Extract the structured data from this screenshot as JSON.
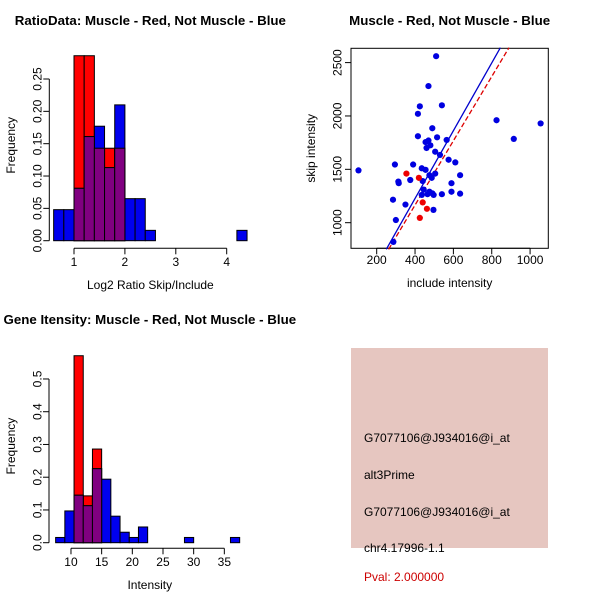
{
  "window": {
    "background": "#ffffff"
  },
  "colors": {
    "red_fill": "#ff0000",
    "blue_fill": "#0000ee",
    "overlap_fill": "#800080",
    "bar_border": "#000000",
    "scatter_blue": "#0000e0",
    "scatter_red": "#ee0000",
    "line_blue": "#0000cc",
    "line_red": "#dd0000",
    "axis": "#000000",
    "info_box_fill": "#e6c6c0",
    "pval_red": "#cc0000"
  },
  "chart_data": [
    {
      "type": "histogram-overlay",
      "title": "RatioData: Muscle - Red, Not Muscle - Blue",
      "xlabel": "Log2 Ratio Skip/Include",
      "ylabel": "Frequency",
      "xticks": [
        "1",
        "2",
        "3",
        "4"
      ],
      "xtick_values": [
        1,
        2,
        3,
        4
      ],
      "yticks": [
        "0.00",
        "0.05",
        "0.10",
        "0.15",
        "0.20",
        "0.25"
      ],
      "ytick_values": [
        0.0,
        0.05,
        0.1,
        0.15,
        0.2,
        0.25
      ],
      "xlim": [
        0.55,
        4.45
      ],
      "ylim": [
        0,
        0.295
      ],
      "bin_width": 0.2,
      "grid": false,
      "red_bins": [
        {
          "x": 1.0,
          "h": 0.286
        },
        {
          "x": 1.2,
          "h": 0.286
        },
        {
          "x": 1.4,
          "h": 0.143
        },
        {
          "x": 1.6,
          "h": 0.143
        },
        {
          "x": 1.8,
          "h": 0.143
        }
      ],
      "blue_bins": [
        {
          "x": 0.6,
          "h": 0.048
        },
        {
          "x": 0.8,
          "h": 0.048
        },
        {
          "x": 1.0,
          "h": 0.081
        },
        {
          "x": 1.2,
          "h": 0.161
        },
        {
          "x": 1.4,
          "h": 0.177
        },
        {
          "x": 1.6,
          "h": 0.113
        },
        {
          "x": 1.8,
          "h": 0.21
        },
        {
          "x": 2.0,
          "h": 0.065
        },
        {
          "x": 2.2,
          "h": 0.065
        },
        {
          "x": 2.4,
          "h": 0.016
        },
        {
          "x": 4.2,
          "h": 0.016
        }
      ]
    },
    {
      "type": "scatter",
      "title": "Muscle - Red, Not Muscle - Blue",
      "xlabel": "include intensity",
      "ylabel": "skip intensity",
      "xticks": [
        "200",
        "400",
        "600",
        "800",
        "1000"
      ],
      "xtick_values": [
        200,
        400,
        600,
        800,
        1000
      ],
      "yticks": [
        "1000",
        "1500",
        "2000",
        "2500"
      ],
      "ytick_values": [
        1000,
        1500,
        2000,
        2500
      ],
      "xlim": [
        66,
        1095
      ],
      "ylim": [
        760,
        2634
      ],
      "grid": false,
      "blue_points": [
        [
          105,
          1490
        ],
        [
          510,
          2560
        ],
        [
          470,
          2280
        ],
        [
          425,
          2090
        ],
        [
          540,
          2100
        ],
        [
          415,
          2020
        ],
        [
          490,
          1885
        ],
        [
          415,
          1810
        ],
        [
          515,
          1800
        ],
        [
          455,
          1755
        ],
        [
          470,
          1770
        ],
        [
          480,
          1725
        ],
        [
          460,
          1700
        ],
        [
          565,
          1775
        ],
        [
          505,
          1665
        ],
        [
          530,
          1635
        ],
        [
          575,
          1590
        ],
        [
          610,
          1565
        ],
        [
          295,
          1545
        ],
        [
          390,
          1545
        ],
        [
          435,
          1510
        ],
        [
          455,
          1495
        ],
        [
          475,
          1445
        ],
        [
          487,
          1420
        ],
        [
          505,
          1460
        ],
        [
          635,
          1445
        ],
        [
          590,
          1370
        ],
        [
          313,
          1385
        ],
        [
          375,
          1400
        ],
        [
          440,
          1390
        ],
        [
          315,
          1370
        ],
        [
          445,
          1310
        ],
        [
          475,
          1290
        ],
        [
          490,
          1275
        ],
        [
          540,
          1267
        ],
        [
          590,
          1290
        ],
        [
          635,
          1272
        ],
        [
          435,
          1260
        ],
        [
          465,
          1267
        ],
        [
          497,
          1260
        ],
        [
          285,
          1215
        ],
        [
          350,
          1170
        ],
        [
          496,
          1120
        ],
        [
          300,
          1025
        ],
        [
          287,
          820
        ],
        [
          825,
          1960
        ],
        [
          915,
          1785
        ],
        [
          1055,
          1930
        ]
      ],
      "red_points": [
        [
          355,
          1460
        ],
        [
          420,
          1420
        ],
        [
          440,
          1190
        ],
        [
          462,
          1130
        ],
        [
          425,
          1045
        ]
      ],
      "blue_line": [
        [
          250,
          750
        ],
        [
          845,
          2640
        ]
      ],
      "red_line": [
        [
          262,
          750
        ],
        [
          890,
          2640
        ]
      ]
    },
    {
      "type": "histogram-overlay",
      "title": "Gene Itensity: Muscle - Red, Not Muscle - Blue",
      "xlabel": "Intensity",
      "ylabel": "Frequency",
      "xticks": [
        "10",
        "15",
        "20",
        "25",
        "30",
        "35"
      ],
      "xtick_values": [
        10,
        15,
        20,
        25,
        30,
        35
      ],
      "yticks": [
        "0.0",
        "0.1",
        "0.2",
        "0.3",
        "0.4",
        "0.5"
      ],
      "ytick_values": [
        0.0,
        0.1,
        0.2,
        0.3,
        0.4,
        0.5
      ],
      "xlim": [
        7.2,
        38.5
      ],
      "ylim": [
        0,
        0.59
      ],
      "bin_width": 1.5,
      "grid": false,
      "red_bins": [
        {
          "x": 10.5,
          "h": 0.571
        },
        {
          "x": 12.0,
          "h": 0.143
        },
        {
          "x": 13.5,
          "h": 0.286
        }
      ],
      "blue_bins": [
        {
          "x": 7.5,
          "h": 0.016
        },
        {
          "x": 9.0,
          "h": 0.097
        },
        {
          "x": 10.5,
          "h": 0.145
        },
        {
          "x": 12.0,
          "h": 0.113
        },
        {
          "x": 13.5,
          "h": 0.226
        },
        {
          "x": 15.0,
          "h": 0.194
        },
        {
          "x": 16.5,
          "h": 0.081
        },
        {
          "x": 18.0,
          "h": 0.032
        },
        {
          "x": 19.5,
          "h": 0.016
        },
        {
          "x": 21.0,
          "h": 0.048
        },
        {
          "x": 28.5,
          "h": 0.016
        },
        {
          "x": 36.0,
          "h": 0.016
        }
      ]
    }
  ],
  "info_panel": {
    "lines": [
      {
        "text": "G7077106@J934016@i_at",
        "color": "#000000"
      },
      {
        "text": "alt3Prime",
        "color": "#000000"
      },
      {
        "text": "G7077106@J934016@i_at",
        "color": "#000000"
      },
      {
        "text": "chr4.17996-1.1",
        "color": "#000000"
      },
      {
        "text": "Pval: 2.000000",
        "color": "#cc0000"
      }
    ]
  }
}
